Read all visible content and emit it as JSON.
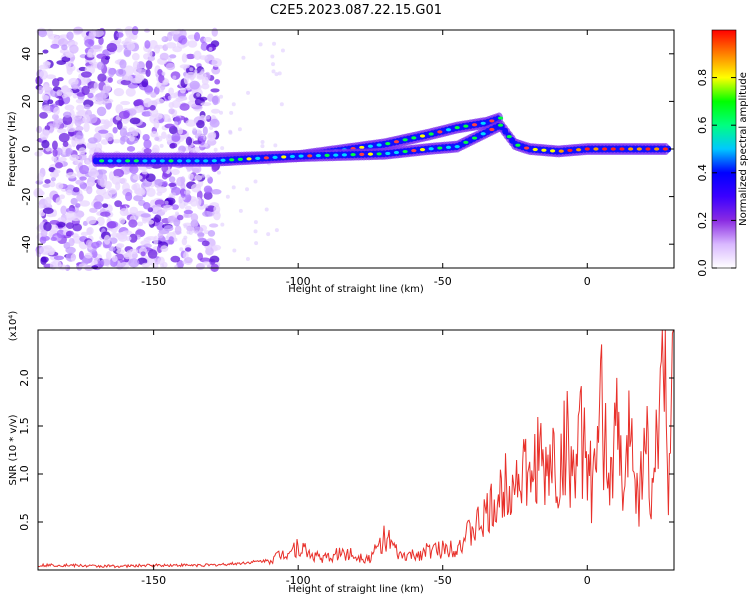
{
  "title": "C2E5.2023.087.22.15.G01",
  "chart_data": [
    {
      "type": "heatmap",
      "name": "spectrogram",
      "xlabel": "Height of straight line (km)",
      "ylabel": "Frequency (Hz)",
      "xlim": [
        -190,
        30
      ],
      "ylim": [
        -50,
        50
      ],
      "xticks": [
        -150,
        -100,
        -50,
        0
      ],
      "yticks": [
        -40,
        -20,
        0,
        20,
        40
      ],
      "colorbar": {
        "label": "Normalized spectral amplitude",
        "range": [
          0,
          1
        ],
        "ticks": [
          "0.0",
          "0.2",
          "0.4",
          "0.6",
          "0.8"
        ],
        "colormap": [
          "#ffffff",
          "#d9b8ff",
          "#8a2be2",
          "#3b00ff",
          "#0000ff",
          "#00c8ff",
          "#00ff80",
          "#00ff00",
          "#ffff00",
          "#ff8000",
          "#ff0000"
        ]
      },
      "tracks": [
        {
          "x": [
            -170,
            -130,
            -100,
            -70,
            -55,
            -45,
            -35,
            -30
          ],
          "y": [
            -4,
            -4,
            -3,
            2,
            6,
            9,
            11,
            13
          ]
        },
        {
          "x": [
            -170,
            -130,
            -100,
            -70,
            -55,
            -45,
            -35,
            -30,
            -25,
            -20,
            -10,
            0,
            10,
            20,
            28
          ],
          "y": [
            -5,
            -5,
            -3,
            -2,
            0,
            1,
            7,
            10,
            2,
            0,
            -1,
            0,
            0,
            0,
            0
          ]
        }
      ]
    },
    {
      "type": "line",
      "name": "snr",
      "xlabel": "Height of straight line (km)",
      "ylabel": "SNR (10 * v/v)",
      "y_multiplier_label": "(x10⁴)",
      "xlim": [
        -190,
        30
      ],
      "ylim": [
        0,
        2.5
      ],
      "xticks": [
        -150,
        -100,
        -50,
        0
      ],
      "yticks": [
        "0.5",
        "1.0",
        "1.5",
        "2.0"
      ],
      "line_color": "#e8302a",
      "series": [
        {
          "x": [
            -190,
            -180,
            -170,
            -160,
            -150,
            -140,
            -130,
            -120,
            -110,
            -100,
            -95,
            -90,
            -85,
            -80,
            -75,
            -70,
            -65,
            -60,
            -55,
            -50,
            -45,
            -40,
            -35,
            -30,
            -27,
            -25,
            -22,
            -20,
            -17,
            -15,
            -12,
            -10,
            -7,
            -5,
            -2,
            0,
            2,
            5,
            8,
            10,
            13,
            15,
            18,
            20,
            22,
            25,
            27,
            28,
            30
          ],
          "values": [
            0.05,
            0.05,
            0.04,
            0.04,
            0.05,
            0.05,
            0.05,
            0.07,
            0.1,
            0.25,
            0.15,
            0.12,
            0.18,
            0.15,
            0.12,
            0.35,
            0.14,
            0.15,
            0.2,
            0.22,
            0.25,
            0.4,
            0.55,
            0.75,
            1.0,
            0.9,
            1.1,
            0.8,
            1.3,
            0.9,
            1.2,
            0.9,
            1.4,
            1.0,
            1.35,
            1.1,
            0.8,
            1.65,
            0.9,
            1.5,
            0.7,
            1.75,
            0.6,
            1.8,
            0.5,
            1.9,
            2.5,
            0.8,
            2.1
          ]
        }
      ]
    }
  ]
}
